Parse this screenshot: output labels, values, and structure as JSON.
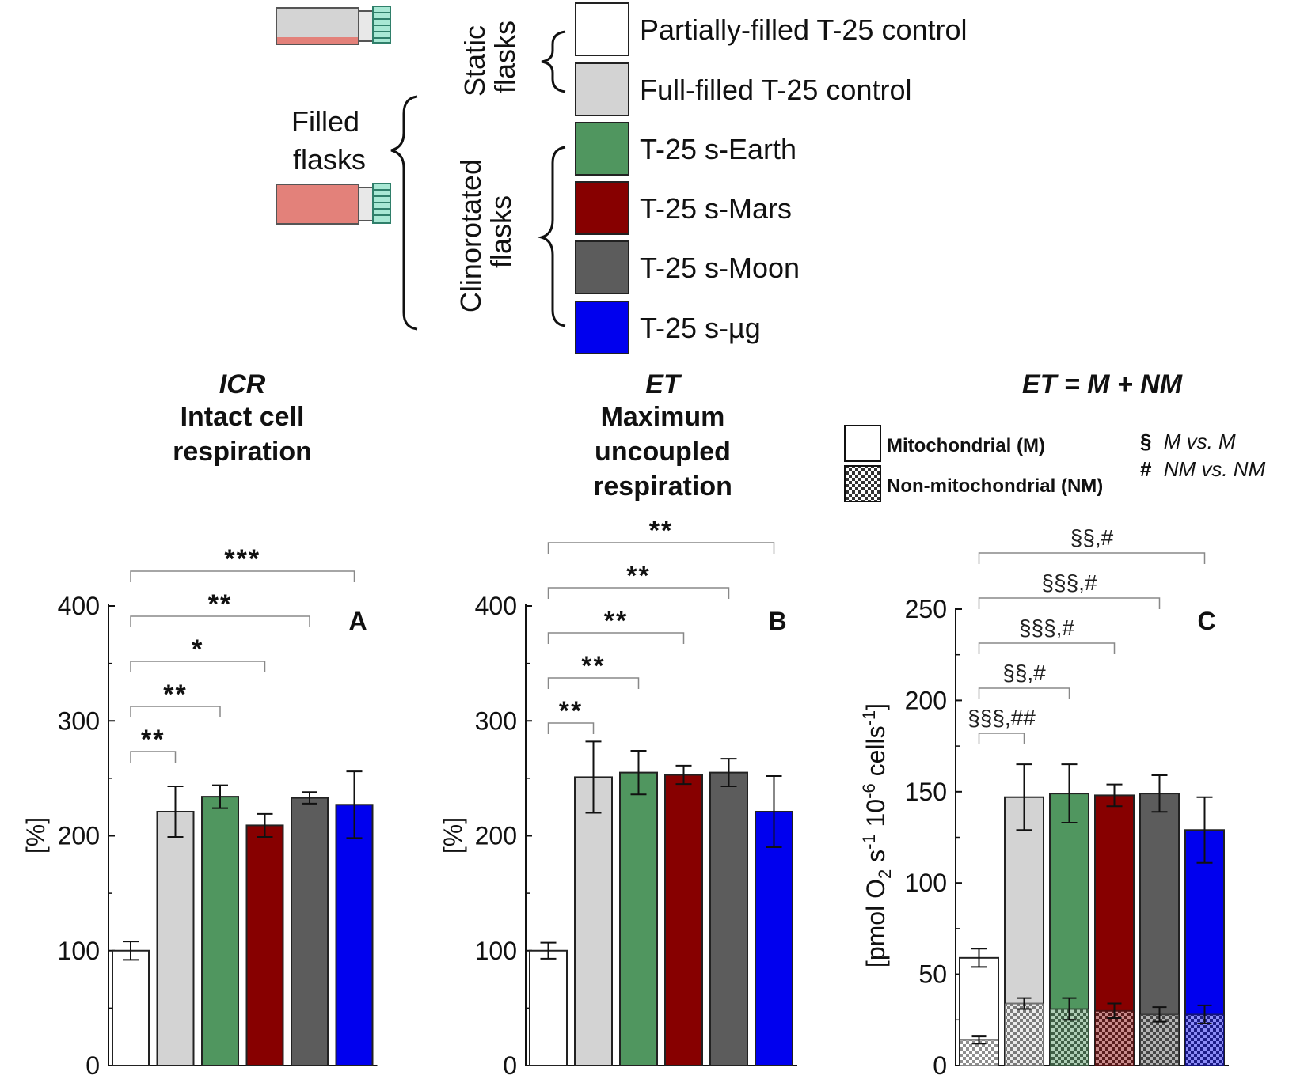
{
  "legend": {
    "groups": {
      "static": "Static\nflasks",
      "clinorotated": "Clinorotated\nflasks",
      "filled": "Filled\nflasks"
    },
    "items": [
      {
        "label": "Partially-filled T-25 control",
        "color": "#ffffff"
      },
      {
        "label": "Full-filled T-25 control",
        "color": "#d3d3d3"
      },
      {
        "label": "T-25 s-Earth",
        "color": "#50965f"
      },
      {
        "label": "T-25 s-Mars",
        "color": "#870000"
      },
      {
        "label": "T-25 s-Moon",
        "color": "#5c5c5c"
      },
      {
        "label": "T-25 s-µg",
        "color": "#0000ee"
      }
    ],
    "flask_colors": {
      "medium": "#e3817a",
      "cap": "#a8e8d4",
      "body_partial": "#d4d4d4"
    }
  },
  "mito_legend": {
    "m_label": "Mitochondrial (M)",
    "nm_label": "Non-mitochondrial (NM)",
    "note_sec_symbol": "§",
    "note_sec_text": "M vs. M",
    "note_hash_symbol": "#",
    "note_hash_text": "NM vs. NM"
  },
  "chart_data": [
    {
      "panel": "A",
      "type": "bar",
      "title_italic": "ICR",
      "title_lines": [
        "Intact cell",
        "respiration"
      ],
      "ylabel": "[%]",
      "ylim": [
        0,
        400
      ],
      "yticks": [
        "0",
        "100",
        "200",
        "300",
        "400"
      ],
      "categories": [
        "Partially-filled T-25 control",
        "Full-filled T-25 control",
        "T-25 s-Earth",
        "T-25 s-Mars",
        "T-25 s-Moon",
        "T-25 s-µg"
      ],
      "values": [
        100,
        221,
        234,
        209,
        233,
        227
      ],
      "errors": [
        8,
        22,
        10,
        10,
        5,
        29
      ],
      "significance": [
        {
          "from": 0,
          "to": 1,
          "label": "**"
        },
        {
          "from": 0,
          "to": 2,
          "label": "**"
        },
        {
          "from": 0,
          "to": 3,
          "label": "*"
        },
        {
          "from": 0,
          "to": 4,
          "label": "**"
        },
        {
          "from": 0,
          "to": 5,
          "label": "***"
        }
      ]
    },
    {
      "panel": "B",
      "type": "bar",
      "title_italic": "ET",
      "title_lines": [
        "Maximum",
        "uncoupled",
        "respiration"
      ],
      "ylabel": "[%]",
      "ylim": [
        0,
        400
      ],
      "yticks": [
        "0",
        "100",
        "200",
        "300",
        "400"
      ],
      "categories": [
        "Partially-filled T-25 control",
        "Full-filled T-25 control",
        "T-25 s-Earth",
        "T-25 s-Mars",
        "T-25 s-Moon",
        "T-25 s-µg"
      ],
      "values": [
        100,
        251,
        255,
        253,
        255,
        221
      ],
      "errors": [
        7,
        31,
        19,
        8,
        12,
        31
      ],
      "significance": [
        {
          "from": 0,
          "to": 1,
          "label": "**"
        },
        {
          "from": 0,
          "to": 2,
          "label": "**"
        },
        {
          "from": 0,
          "to": 3,
          "label": "**"
        },
        {
          "from": 0,
          "to": 4,
          "label": "**"
        },
        {
          "from": 0,
          "to": 5,
          "label": "**"
        }
      ]
    },
    {
      "panel": "C",
      "type": "stacked-bar",
      "title_italic": "ET = M + NM",
      "title_lines": [],
      "ylabel": "[pmol O2 s-1 10-6 cells-1]",
      "ylim": [
        0,
        250
      ],
      "yticks": [
        "0",
        "50",
        "100",
        "150",
        "200",
        "250"
      ],
      "categories": [
        "Partially-filled T-25 control",
        "Full-filled T-25 control",
        "T-25 s-Earth",
        "T-25 s-Mars",
        "T-25 s-Moon",
        "T-25 s-µg"
      ],
      "total": [
        59,
        147,
        149,
        148,
        149,
        129
      ],
      "total_errors": [
        5,
        18,
        16,
        6,
        10,
        18
      ],
      "nm_values": [
        14,
        34,
        31,
        30,
        28,
        28
      ],
      "nm_errors": [
        2,
        3,
        6,
        4,
        4,
        5
      ],
      "significance": [
        {
          "from": 0,
          "to": 1,
          "label": "§§§,##"
        },
        {
          "from": 0,
          "to": 2,
          "label": "§§,#"
        },
        {
          "from": 0,
          "to": 3,
          "label": "§§§,#"
        },
        {
          "from": 0,
          "to": 4,
          "label": "§§§,#"
        },
        {
          "from": 0,
          "to": 5,
          "label": "§§,#"
        }
      ]
    }
  ]
}
